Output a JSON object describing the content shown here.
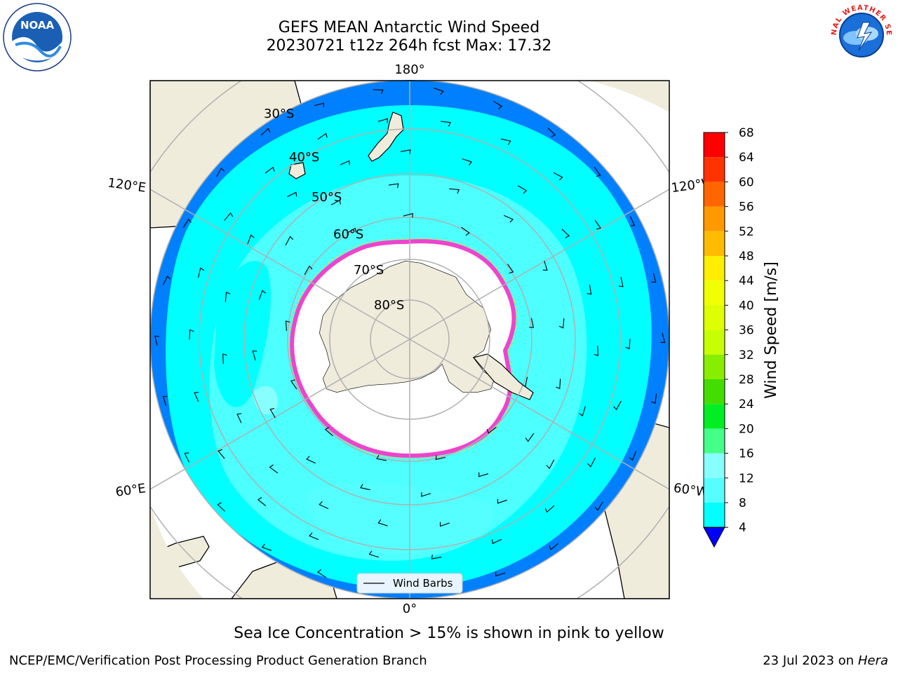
{
  "header": {
    "title_line1": "GEFS MEAN Antarctic Wind Speed",
    "title_line2": "20230721 t12z 264h fcst   Max: 17.32"
  },
  "logos": {
    "left": {
      "icon": "noaa-logo",
      "text": "NOAA"
    },
    "right": {
      "icon": "nws-logo",
      "text": "NATIONAL WEATHER SERVICE"
    }
  },
  "map": {
    "projection": "south-polar-stereographic",
    "lon_labels": {
      "top": "180°",
      "bottom": "0°",
      "upper_left": "120°E",
      "upper_right": "120°W",
      "lower_left": "60°E",
      "lower_right": "60°W"
    },
    "lat_labels": [
      "30°S",
      "40°S",
      "50°S",
      "60°S",
      "70°S",
      "80°S"
    ],
    "legend": {
      "label": "Wind Barbs"
    },
    "colors": {
      "land": "#efecdc",
      "sea_ice_edge": "#ee44cc",
      "ice_white": "#ffffff"
    }
  },
  "colorbar": {
    "label": "Wind Speed [m/s]",
    "ticks": [
      "68",
      "64",
      "60",
      "56",
      "52",
      "48",
      "44",
      "40",
      "36",
      "32",
      "28",
      "24",
      "20",
      "16",
      "12",
      "8",
      "4"
    ],
    "colors": [
      "#ff0000",
      "#ff3300",
      "#ff6600",
      "#ff9900",
      "#ffbb00",
      "#ffee00",
      "#f2ff00",
      "#ddff00",
      "#c8ff00",
      "#88ee00",
      "#44dd00",
      "#00ee22",
      "#44ff88",
      "#88ffff",
      "#55ffff",
      "#00ffff",
      "#0080ff"
    ],
    "extend_color": "#0000ff"
  },
  "caption": "Sea Ice Concentration > 15% is shown in pink to yellow",
  "footer": {
    "left": "NCEP/EMC/Verification Post Processing Product Generation Branch",
    "right_date": "23 Jul 2023 on",
    "right_machine": "Hera"
  }
}
